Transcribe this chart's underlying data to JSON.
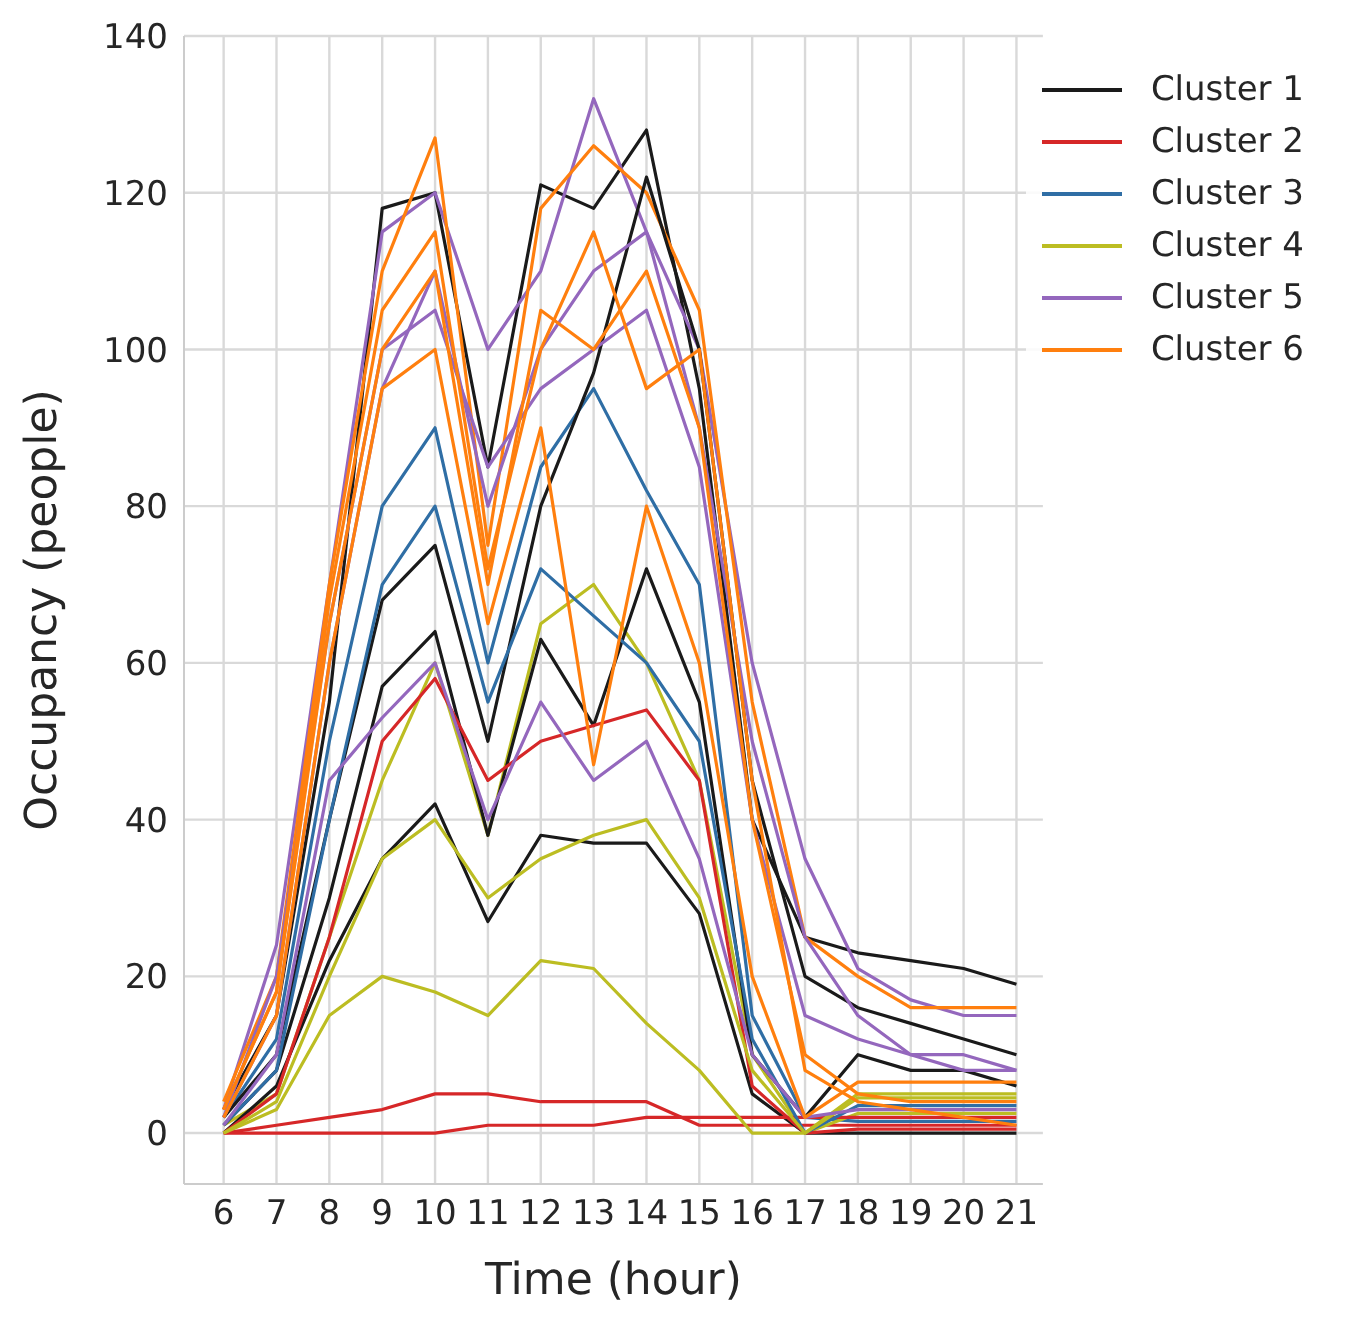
{
  "chart_data": {
    "type": "line",
    "xlabel": "Time (hour)",
    "ylabel": "Occupancy (people)",
    "x": [
      6,
      7,
      8,
      9,
      10,
      11,
      12,
      13,
      14,
      15,
      16,
      17,
      18,
      19,
      20,
      21
    ],
    "xlim": [
      5.25,
      21.5
    ],
    "xticks": [
      6,
      7,
      8,
      9,
      10,
      11,
      12,
      13,
      14,
      15,
      16,
      17,
      18,
      19,
      20,
      21
    ],
    "ylim": [
      -6.5,
      140
    ],
    "yticks": [
      0,
      20,
      40,
      60,
      80,
      100,
      120,
      140
    ],
    "grid": true,
    "legend": "top right",
    "marker": "none",
    "line_style": "solid",
    "series": [
      {
        "name": "Cluster 1",
        "color": "#1a1a1a",
        "values": [
          3,
          15,
          55,
          118,
          120,
          85,
          121,
          118,
          128,
          95,
          40,
          25,
          23,
          22,
          21,
          19
        ]
      },
      {
        "name": "Cluster 2",
        "color": "#d62728",
        "values": [
          0,
          1,
          2,
          3,
          5,
          5,
          4,
          4,
          4,
          1,
          1,
          1,
          1,
          1,
          1,
          1
        ]
      },
      {
        "name": "Cluster 3",
        "color": "#2f6ea5",
        "values": [
          2,
          12,
          50,
          80,
          90,
          60,
          85,
          95,
          82,
          70,
          15,
          2,
          1.5,
          1.5,
          1.5,
          1.5
        ]
      },
      {
        "name": "Cluster 4",
        "color": "#bcbd22",
        "values": [
          1,
          5,
          25,
          45,
          60,
          38,
          65,
          70,
          60,
          45,
          10,
          0,
          2.5,
          2.5,
          2.5,
          2.5
        ]
      },
      {
        "name": "Cluster 5",
        "color": "#9467bd",
        "values": [
          3,
          24,
          70,
          115,
          120,
          100,
          110,
          132,
          115,
          100,
          60,
          35,
          21,
          17,
          15,
          15
        ]
      },
      {
        "name": "Cluster 6",
        "color": "#ff7f0e",
        "values": [
          4,
          20,
          70,
          110,
          127,
          75,
          118,
          126,
          120,
          105,
          55,
          25,
          20,
          16,
          16,
          16
        ]
      },
      {
        "color": "#1a1a1a",
        "values": [
          2,
          10,
          40,
          68,
          75,
          50,
          80,
          97,
          122,
          100,
          45,
          20,
          16,
          14,
          12,
          10
        ]
      },
      {
        "color": "#1a1a1a",
        "values": [
          1,
          8,
          30,
          57,
          64,
          38,
          63,
          52,
          72,
          55,
          10,
          2,
          10,
          8,
          8,
          6
        ]
      },
      {
        "color": "#1a1a1a",
        "values": [
          0,
          6,
          22,
          35,
          42,
          27,
          38,
          37,
          37,
          28,
          5,
          0,
          0,
          0,
          0,
          0
        ]
      },
      {
        "color": "#d62728",
        "values": [
          0,
          0,
          0,
          0,
          0,
          1,
          1,
          1,
          2,
          2,
          2,
          2,
          2,
          2,
          2,
          2
        ]
      },
      {
        "color": "#d62728",
        "values": [
          0,
          5,
          25,
          50,
          58,
          45,
          50,
          52,
          54,
          45,
          6,
          0,
          0.5,
          0.5,
          0.5,
          0.5
        ]
      },
      {
        "color": "#2f6ea5",
        "values": [
          1,
          8,
          40,
          70,
          80,
          55,
          72,
          66,
          60,
          50,
          12,
          0,
          3.5,
          3.5,
          3.5,
          3.5
        ]
      },
      {
        "color": "#bcbd22",
        "values": [
          0,
          4,
          20,
          35,
          40,
          30,
          35,
          38,
          40,
          30,
          8,
          0,
          5,
          5,
          5,
          5
        ]
      },
      {
        "color": "#bcbd22",
        "values": [
          0,
          3,
          15,
          20,
          18,
          15,
          22,
          21,
          14,
          8,
          0,
          0,
          4.5,
          4.5,
          4.5,
          4.5
        ]
      },
      {
        "color": "#9467bd",
        "values": [
          2,
          15,
          60,
          95,
          110,
          80,
          100,
          110,
          115,
          90,
          50,
          25,
          15,
          10,
          8,
          8
        ]
      },
      {
        "color": "#9467bd",
        "values": [
          1,
          10,
          45,
          53,
          60,
          40,
          55,
          45,
          50,
          35,
          10,
          2,
          3,
          3,
          3,
          3
        ]
      },
      {
        "color": "#9467bd",
        "values": [
          2,
          20,
          65,
          100,
          105,
          85,
          95,
          100,
          105,
          85,
          40,
          15,
          12,
          10,
          10,
          8
        ]
      },
      {
        "color": "#ff7f0e",
        "values": [
          3,
          18,
          65,
          100,
          110,
          70,
          105,
          100,
          110,
          90,
          40,
          10,
          5,
          4,
          4,
          4
        ]
      },
      {
        "color": "#ff7f0e",
        "values": [
          2,
          15,
          60,
          95,
          100,
          65,
          90,
          47,
          80,
          60,
          20,
          2,
          6.5,
          6.5,
          6.5,
          6.5
        ]
      },
      {
        "color": "#ff7f0e",
        "values": [
          3,
          18,
          68,
          105,
          115,
          72,
          100,
          115,
          95,
          100,
          45,
          8,
          4,
          3,
          2,
          1
        ]
      }
    ]
  }
}
